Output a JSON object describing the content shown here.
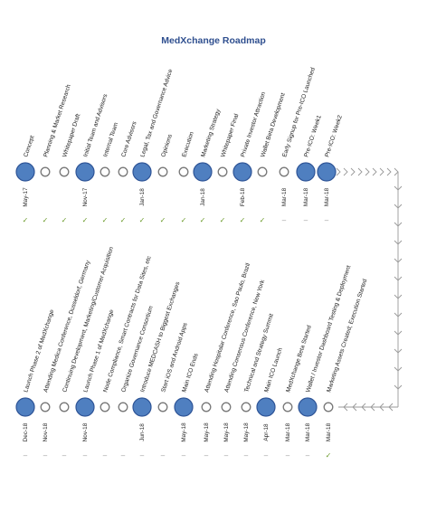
{
  "title": "MedXchange Roadmap",
  "rows": [
    {
      "milestones": [
        {
          "label": "Concept",
          "major": true,
          "date": "May-17",
          "status": "✓"
        },
        {
          "label": "Planning & Market Research",
          "major": false,
          "status": "✓"
        },
        {
          "label": "Whitepaper Draft",
          "major": false,
          "status": "✓"
        },
        {
          "label": "Initial Team and Advisors",
          "major": true,
          "date": "Nov-17",
          "status": "✓"
        },
        {
          "label": "Internal Team",
          "major": false,
          "status": "✓"
        },
        {
          "label": "Core Advisors",
          "major": false,
          "status": "✓"
        },
        {
          "label": "Legal, Tax and Governance Advice",
          "major": true,
          "date": "Jan-18",
          "status": "✓"
        },
        {
          "label": "Opinions",
          "major": false,
          "status": "✓"
        },
        {
          "label": "Execution",
          "major": false,
          "status": "✓"
        },
        {
          "label": "Marketing Strategy",
          "major": true,
          "date": "Jan-18",
          "status": "✓"
        },
        {
          "label": "Whitepaper Final",
          "major": false,
          "status": "✓"
        },
        {
          "label": "Private Investor Attraction",
          "major": true,
          "date": "Feb-18",
          "status": "✓"
        },
        {
          "label": "Wallet Beta Development",
          "major": false,
          "status": "✓"
        },
        {
          "label": "Early Signup for Pre-ICO Launched",
          "major": false,
          "date": "Mar-18",
          "status": "–",
          "color": "#2222cc"
        },
        {
          "label": "Pre-ICO: Week1",
          "major": true,
          "date": "Mar-18",
          "status": "–",
          "color": "#2222cc"
        },
        {
          "label": "Pre-ICO: Week2",
          "major": true,
          "date": "Mar-18",
          "status": "–",
          "color": "#2222cc"
        }
      ]
    },
    {
      "milestones": [
        {
          "label": "Launch Phase 2 of MedXchange",
          "major": true,
          "date": "Dec-18",
          "status": "–"
        },
        {
          "label": "Attending Medica Conference, Dusseldorf, Germany",
          "major": false,
          "date": "Nov-18",
          "status": "–"
        },
        {
          "label": "Continuing Development, Marketing/Customer Acquisition",
          "major": false,
          "status": "–"
        },
        {
          "label": "Launch Phase 1 of MedXchange",
          "major": true,
          "date": "Nov-18",
          "status": "–"
        },
        {
          "label": "Node Compliance, Smart Contracts for Data Sites, etc",
          "major": false,
          "status": "–"
        },
        {
          "label": "Organize Governance Consortium",
          "major": false,
          "status": "–"
        },
        {
          "label": "Introduce MEDCASH to Biggest Exchanges",
          "major": true,
          "date": "Jun-18",
          "status": "–"
        },
        {
          "label": "Start iOS and Android Apps",
          "major": false,
          "status": "–"
        },
        {
          "label": "Main ICO Ends",
          "major": true,
          "date": "May-18",
          "status": "–",
          "color": "#e02020"
        },
        {
          "label": "Attending Hospitalar Conference, Sao Paulo, Brazil",
          "major": false,
          "date": "May-18",
          "status": "–"
        },
        {
          "label": "Attending Consensus Conference, New York",
          "major": false,
          "date": "May-18",
          "status": "–"
        },
        {
          "label": "Technical and Strategy Summit",
          "major": false,
          "date": "May-18",
          "status": "–"
        },
        {
          "label": "Main ICO Launch",
          "major": true,
          "date": "Apr-18",
          "status": "–",
          "color": "#e02020"
        },
        {
          "label": "MedXchange Beta Started",
          "major": false,
          "date": "Mar-18",
          "status": "–"
        },
        {
          "label": "Wallet / Investor Dashboard Testing & Deployment",
          "major": true,
          "date": "Mar-18",
          "status": "–"
        },
        {
          "label": "Marketing Assets Created; Execution Started",
          "major": false,
          "date": "Mar-18",
          "status": "✓"
        }
      ]
    }
  ]
}
